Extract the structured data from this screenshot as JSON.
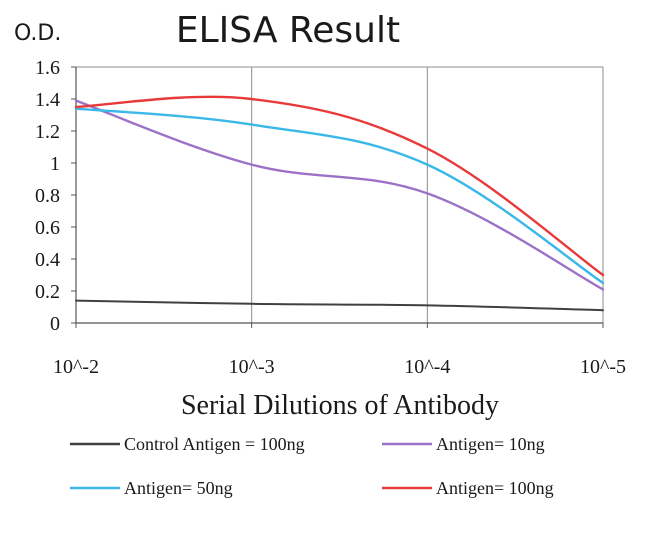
{
  "chart_data": {
    "type": "line",
    "title": "ELISA Result",
    "ylabel": "O.D.",
    "xlabel": "Serial Dilutions of Antibody",
    "categories": [
      "10^-2",
      "10^-3",
      "10^-4",
      "10^-5"
    ],
    "ylim": [
      0,
      1.6
    ],
    "yticks": [
      "1.6",
      "1.4",
      "1.2",
      "1",
      "0.8",
      "0.6",
      "0.4",
      "0.2",
      "0"
    ],
    "ytick_values": [
      1.6,
      1.4,
      1.2,
      1.0,
      0.8,
      0.6,
      0.4,
      0.2,
      0
    ],
    "grid": "vertical",
    "legend_position": "bottom",
    "series": [
      {
        "name": "Control Antigen = 100ng",
        "color": "#404040",
        "values": [
          0.14,
          0.12,
          0.11,
          0.08
        ]
      },
      {
        "name": "Antigen= 10ng",
        "color": "#9b72c8",
        "values": [
          1.39,
          0.99,
          0.81,
          0.21
        ]
      },
      {
        "name": "Antigen= 50ng",
        "color": "#3ab8e8",
        "values": [
          1.34,
          1.24,
          0.99,
          0.25
        ]
      },
      {
        "name": "Antigen= 100ng",
        "color": "#e83a3a",
        "values": [
          1.35,
          1.4,
          1.09,
          0.3
        ]
      }
    ]
  }
}
